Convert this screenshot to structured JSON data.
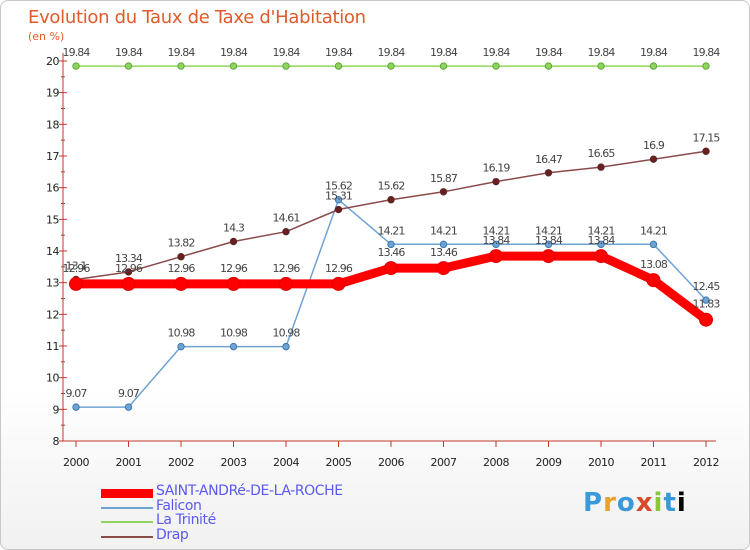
{
  "chart_data": {
    "type": "line",
    "title": "Evolution du Taux de Taxe d'Habitation",
    "subtitle": "(en %)",
    "xlabel": "",
    "ylabel": "",
    "x": [
      "2000",
      "2001",
      "2002",
      "2003",
      "2004",
      "2005",
      "2006",
      "2007",
      "2008",
      "2009",
      "2010",
      "2011",
      "2012"
    ],
    "ylim": [
      8,
      20
    ],
    "yticks": [
      "8",
      "9",
      "10",
      "11",
      "12",
      "13",
      "14",
      "15",
      "16",
      "17",
      "18",
      "19",
      "20"
    ],
    "grid": false,
    "legend_position": "bottom-left",
    "series": [
      {
        "name": "SAINT-ANDRé-DE-LA-ROCHE",
        "color": "#ff0000",
        "values": [
          12.96,
          12.96,
          12.96,
          12.96,
          12.96,
          12.96,
          13.46,
          13.46,
          13.84,
          13.84,
          13.84,
          13.08,
          11.83
        ],
        "labels": [
          "12.96",
          "12.96",
          "12.96",
          "12.96",
          "12.96",
          "12.96",
          "13.46",
          "13.46",
          "13.84",
          "13.84",
          "13.84",
          "13.08",
          "11.83"
        ]
      },
      {
        "name": "Falicon",
        "color": "#6fa3d4",
        "values": [
          9.07,
          9.07,
          10.98,
          10.98,
          10.98,
          15.62,
          14.21,
          14.21,
          14.21,
          14.21,
          14.21,
          14.21,
          12.45
        ],
        "labels": [
          "9.07",
          "9.07",
          "10.98",
          "10.98",
          "10.98",
          "15.62",
          "14.21",
          "14.21",
          "14.21",
          "14.21",
          "14.21",
          "14.21",
          "12.45"
        ]
      },
      {
        "name": "La Trinité",
        "color": "#8fd45c",
        "values": [
          19.84,
          19.84,
          19.84,
          19.84,
          19.84,
          19.84,
          19.84,
          19.84,
          19.84,
          19.84,
          19.84,
          19.84,
          19.84
        ],
        "labels": [
          "19.84",
          "19.84",
          "19.84",
          "19.84",
          "19.84",
          "19.84",
          "19.84",
          "19.84",
          "19.84",
          "19.84",
          "19.84",
          "19.84",
          "19.84"
        ]
      },
      {
        "name": "Drap",
        "color": "#8a4a4a",
        "values": [
          13.1,
          13.34,
          13.82,
          14.3,
          14.61,
          15.31,
          15.62,
          15.87,
          16.19,
          16.47,
          16.65,
          16.9,
          17.15
        ],
        "labels": [
          "13.1",
          "13.34",
          "13.82",
          "14.3",
          "14.61",
          "15.31",
          "15.62",
          "15.87",
          "16.19",
          "16.47",
          "16.65",
          "16.9",
          "17.15"
        ]
      }
    ]
  },
  "logo_text": "Proxiti"
}
